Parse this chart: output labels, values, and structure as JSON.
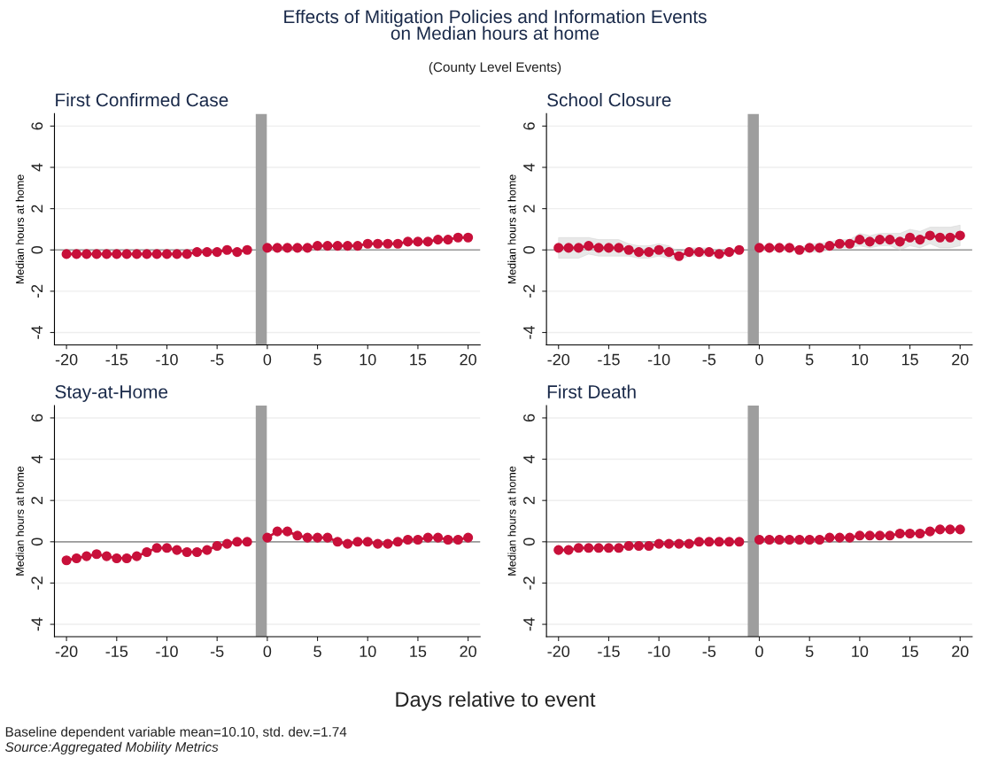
{
  "chart_data": [
    {
      "type": "line",
      "xlabel": "Days relative to event",
      "annotations": [
        "Effects of Mitigation Policies and Information Events\non Median hours at home",
        "(County Level Events)",
        "Baseline dependent variable mean=10.10, std. dev.=1.74",
        "Source:Aggregated Mobility Metrics"
      ],
      "title": "First Confirmed Case",
      "ylabel": "Median hours at home",
      "x": [
        -20,
        -19,
        -18,
        -17,
        -16,
        -15,
        -14,
        -13,
        -12,
        -11,
        -10,
        -9,
        -8,
        -7,
        -6,
        -5,
        -4,
        -3,
        -2,
        -1,
        0,
        1,
        2,
        3,
        4,
        5,
        6,
        7,
        8,
        9,
        10,
        11,
        12,
        13,
        14,
        15,
        16,
        17,
        18,
        19,
        20
      ],
      "series": [
        {
          "color": "#c8103a",
          "values": [
            -0.2,
            -0.2,
            -0.2,
            -0.2,
            -0.2,
            -0.2,
            -0.2,
            -0.2,
            -0.2,
            -0.2,
            -0.2,
            -0.2,
            -0.2,
            -0.1,
            -0.1,
            -0.1,
            0,
            -0.1,
            0,
            null,
            0.1,
            0.1,
            0.1,
            0.1,
            0.1,
            0.2,
            0.2,
            0.2,
            0.2,
            0.2,
            0.3,
            0.3,
            0.3,
            0.3,
            0.4,
            0.4,
            0.4,
            0.5,
            0.5,
            0.6,
            0.6
          ]
        }
      ],
      "xlim": [
        -21.2,
        21.2
      ],
      "ylim": [
        -4.6,
        6.6
      ],
      "xticks": [
        -20,
        -15,
        -10,
        -5,
        0,
        5,
        10,
        15,
        20
      ],
      "yticks": [
        -4,
        -2,
        0,
        2,
        4,
        6
      ],
      "ref_lines": [
        {
          "axis": "y",
          "value": 0,
          "color": "#999999"
        }
      ],
      "bands": [
        {
          "axis": "x",
          "from": -1.15,
          "to": -0.05,
          "color": "#9e9e9e"
        }
      ],
      "grid": "y",
      "marker": "circle",
      "line_style": "solid"
    },
    {
      "type": "line",
      "title": "School Closure",
      "ylabel": "Median hours at home",
      "x": [
        -20,
        -19,
        -18,
        -17,
        -16,
        -15,
        -14,
        -13,
        -12,
        -11,
        -10,
        -9,
        -8,
        -7,
        -6,
        -5,
        -4,
        -3,
        -2,
        -1,
        0,
        1,
        2,
        3,
        4,
        5,
        6,
        7,
        8,
        9,
        10,
        11,
        12,
        13,
        14,
        15,
        16,
        17,
        18,
        19,
        20
      ],
      "series": [
        {
          "color": "#c8103a",
          "values": [
            0.1,
            0.1,
            0.1,
            0.2,
            0.1,
            0.1,
            0.1,
            0,
            -0.1,
            -0.1,
            0,
            -0.1,
            -0.3,
            -0.1,
            -0.1,
            -0.1,
            -0.2,
            -0.1,
            0,
            null,
            0.1,
            0.1,
            0.1,
            0.1,
            0,
            0.1,
            0.1,
            0.2,
            0.3,
            0.3,
            0.5,
            0.4,
            0.5,
            0.5,
            0.4,
            0.6,
            0.5,
            0.7,
            0.6,
            0.6,
            0.7
          ],
          "lower": [
            -0.4,
            -0.4,
            -0.4,
            -0.2,
            -0.3,
            -0.3,
            -0.3,
            -0.3,
            -0.4,
            -0.4,
            -0.3,
            -0.4,
            -0.5,
            -0.3,
            -0.3,
            -0.3,
            -0.3,
            -0.2,
            -0.1,
            null,
            0,
            0,
            0,
            0,
            -0.1,
            -0.1,
            -0.1,
            0,
            0.1,
            0.1,
            0.2,
            0.1,
            0.2,
            0.2,
            0,
            0.2,
            0.1,
            0.3,
            0.1,
            0.1,
            0.2
          ],
          "upper": [
            0.6,
            0.6,
            0.6,
            0.6,
            0.5,
            0.5,
            0.5,
            0.3,
            0.2,
            0.2,
            0.3,
            0.2,
            -0.1,
            0.1,
            0.1,
            0.1,
            -0.1,
            0,
            0.1,
            null,
            0.2,
            0.2,
            0.2,
            0.2,
            0.1,
            0.3,
            0.3,
            0.4,
            0.5,
            0.5,
            0.8,
            0.7,
            0.8,
            0.8,
            0.8,
            1.0,
            0.9,
            1.1,
            1.1,
            1.1,
            1.2
          ]
        }
      ],
      "xlim": [
        -21.2,
        21.2
      ],
      "ylim": [
        -4.6,
        6.6
      ],
      "xticks": [
        -20,
        -15,
        -10,
        -5,
        0,
        5,
        10,
        15,
        20
      ],
      "yticks": [
        -4,
        -2,
        0,
        2,
        4,
        6
      ],
      "ref_lines": [
        {
          "axis": "y",
          "value": 0,
          "color": "#999999"
        }
      ],
      "bands": [
        {
          "axis": "x",
          "from": -1.15,
          "to": -0.05,
          "color": "#9e9e9e"
        }
      ],
      "grid": "y",
      "marker": "circle",
      "line_style": "solid"
    },
    {
      "type": "line",
      "title": "Stay-at-Home",
      "ylabel": "Median hours at home",
      "x": [
        -20,
        -19,
        -18,
        -17,
        -16,
        -15,
        -14,
        -13,
        -12,
        -11,
        -10,
        -9,
        -8,
        -7,
        -6,
        -5,
        -4,
        -3,
        -2,
        -1,
        0,
        1,
        2,
        3,
        4,
        5,
        6,
        7,
        8,
        9,
        10,
        11,
        12,
        13,
        14,
        15,
        16,
        17,
        18,
        19,
        20
      ],
      "series": [
        {
          "color": "#c8103a",
          "values": [
            -0.9,
            -0.8,
            -0.7,
            -0.6,
            -0.7,
            -0.8,
            -0.8,
            -0.7,
            -0.5,
            -0.3,
            -0.3,
            -0.4,
            -0.5,
            -0.5,
            -0.4,
            -0.2,
            -0.1,
            0,
            0,
            null,
            0.2,
            0.5,
            0.5,
            0.3,
            0.2,
            0.2,
            0.2,
            0,
            -0.1,
            0,
            0,
            -0.1,
            -0.1,
            0,
            0.1,
            0.1,
            0.2,
            0.2,
            0.1,
            0.1,
            0.2
          ]
        }
      ],
      "xlim": [
        -21.2,
        21.2
      ],
      "ylim": [
        -4.6,
        6.6
      ],
      "xticks": [
        -20,
        -15,
        -10,
        -5,
        0,
        5,
        10,
        15,
        20
      ],
      "yticks": [
        -4,
        -2,
        0,
        2,
        4,
        6
      ],
      "ref_lines": [
        {
          "axis": "y",
          "value": 0,
          "color": "#999999"
        }
      ],
      "bands": [
        {
          "axis": "x",
          "from": -1.15,
          "to": -0.05,
          "color": "#9e9e9e"
        }
      ],
      "grid": "y",
      "marker": "circle",
      "line_style": "solid"
    },
    {
      "type": "line",
      "title": "First Death",
      "ylabel": "Median hours at home",
      "x": [
        -20,
        -19,
        -18,
        -17,
        -16,
        -15,
        -14,
        -13,
        -12,
        -11,
        -10,
        -9,
        -8,
        -7,
        -6,
        -5,
        -4,
        -3,
        -2,
        -1,
        0,
        1,
        2,
        3,
        4,
        5,
        6,
        7,
        8,
        9,
        10,
        11,
        12,
        13,
        14,
        15,
        16,
        17,
        18,
        19,
        20
      ],
      "series": [
        {
          "color": "#c8103a",
          "values": [
            -0.4,
            -0.4,
            -0.3,
            -0.3,
            -0.3,
            -0.3,
            -0.3,
            -0.2,
            -0.2,
            -0.2,
            -0.1,
            -0.1,
            -0.1,
            -0.1,
            0,
            0,
            0,
            0,
            0,
            null,
            0.1,
            0.1,
            0.1,
            0.1,
            0.1,
            0.1,
            0.1,
            0.2,
            0.2,
            0.2,
            0.3,
            0.3,
            0.3,
            0.3,
            0.4,
            0.4,
            0.4,
            0.5,
            0.6,
            0.6,
            0.6
          ]
        }
      ],
      "xlim": [
        -21.2,
        21.2
      ],
      "ylim": [
        -4.6,
        6.6
      ],
      "xticks": [
        -20,
        -15,
        -10,
        -5,
        0,
        5,
        10,
        15,
        20
      ],
      "yticks": [
        -4,
        -2,
        0,
        2,
        4,
        6
      ],
      "ref_lines": [
        {
          "axis": "y",
          "value": 0,
          "color": "#999999"
        }
      ],
      "bands": [
        {
          "axis": "x",
          "from": -1.15,
          "to": -0.05,
          "color": "#9e9e9e"
        }
      ],
      "grid": "y",
      "marker": "circle",
      "line_style": "solid"
    }
  ]
}
